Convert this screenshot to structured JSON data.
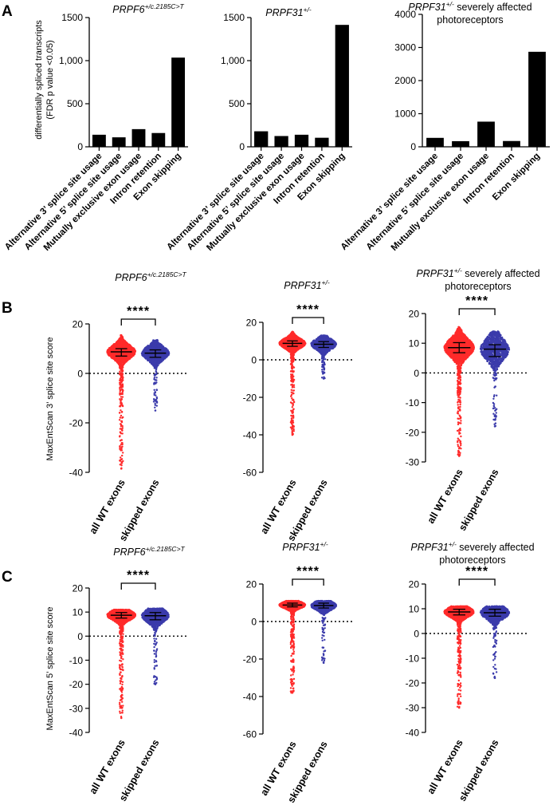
{
  "panels": {
    "A": {
      "letter": "A",
      "ylabel_lines": [
        "differentially spliced transcripts",
        "(FDR p value <0.05)"
      ]
    },
    "B": {
      "letter": "B",
      "ylabel": "MaxEntScan 3’ splice site score",
      "significance": "****"
    },
    "C": {
      "letter": "C",
      "ylabel": "MaxEntScan 5’ splice site score",
      "significance": "****"
    }
  },
  "titles": {
    "prpf6": {
      "gene": "PRPF6",
      "sup": "+/c.2185C>T"
    },
    "prpf31": {
      "gene": "PRPF31",
      "sup": "+/-"
    },
    "prpf31_severe": {
      "gene": "PRPF31",
      "sup": "+/-",
      "rest": " severely affected",
      "line2": "photoreceptors"
    }
  },
  "chart_data": [
    {
      "id": "A1",
      "type": "bar",
      "categories": [
        "Alternative 3’ splice site usage",
        "Alternative 5’ splice site usage",
        "Mutually exclusive exon usage",
        "Intron retention",
        "Exon skipping"
      ],
      "values": [
        140,
        110,
        205,
        160,
        1035
      ],
      "ylim": [
        0,
        1500
      ],
      "yticks": [
        0,
        500,
        1000,
        1500
      ],
      "ytick_labels": [
        "0",
        "500",
        "1,000",
        "1500"
      ],
      "color": "#000000"
    },
    {
      "id": "A2",
      "type": "bar",
      "categories": [
        "Alternative 3’ splice site usage",
        "Alternative 5’ splice site usage",
        "Mutually exclusive exon usage",
        "Intron retention",
        "Exon skipping"
      ],
      "values": [
        180,
        125,
        140,
        105,
        1415
      ],
      "ylim": [
        0,
        1500
      ],
      "yticks": [
        0,
        500,
        1000,
        1500
      ],
      "ytick_labels": [
        "0",
        "500",
        "1,000",
        "1500"
      ],
      "color": "#000000"
    },
    {
      "id": "A3",
      "type": "bar",
      "categories": [
        "Alternative 3’ splice site usage",
        "Alternative 5’ splice site usage",
        "Mutually exclusive exon usage",
        "Intron retention",
        "Exon skipping"
      ],
      "values": [
        270,
        170,
        760,
        175,
        2870
      ],
      "ylim": [
        0,
        4000
      ],
      "yticks": [
        0,
        1000,
        2000,
        3000,
        4000
      ],
      "ytick_labels": [
        "0",
        "1000",
        "2000",
        "3000",
        "4000"
      ],
      "color": "#000000"
    },
    {
      "id": "B1",
      "type": "scatter",
      "categories": [
        "all WT exons",
        "skipped exons"
      ],
      "ylim": [
        -40,
        20
      ],
      "yticks": [
        -40,
        -20,
        0,
        20
      ],
      "series": [
        {
          "name": "all WT exons",
          "color": "#ff2a2a",
          "median": 8.7,
          "q1": 7.0,
          "q3": 10.0,
          "min": -38.5,
          "max": 15.5
        },
        {
          "name": "skipped exons",
          "color": "#3b3bab",
          "median": 8.2,
          "q1": 6.5,
          "q3": 9.5,
          "min": -15,
          "max": 13.5
        }
      ],
      "significance": "****"
    },
    {
      "id": "B2",
      "type": "scatter",
      "categories": [
        "all WT exons",
        "skipped exons"
      ],
      "ylim": [
        -60,
        20
      ],
      "yticks": [
        -60,
        -40,
        -20,
        0,
        20
      ],
      "series": [
        {
          "name": "all WT exons",
          "color": "#ff2a2a",
          "median": 8.8,
          "q1": 7.2,
          "q3": 10.1,
          "min": -40,
          "max": 15
        },
        {
          "name": "skipped exons",
          "color": "#3b3bab",
          "median": 8.3,
          "q1": 6.6,
          "q3": 9.7,
          "min": -10,
          "max": 13
        }
      ],
      "significance": "****"
    },
    {
      "id": "B3",
      "type": "scatter",
      "categories": [
        "all WT exons",
        "skipped exons"
      ],
      "ylim": [
        -30,
        20
      ],
      "yticks": [
        -30,
        -20,
        -10,
        0,
        10,
        20
      ],
      "series": [
        {
          "name": "all WT exons",
          "color": "#ff2a2a",
          "median": 8.5,
          "q1": 6.8,
          "q3": 10.2,
          "min": -28,
          "max": 15.5
        },
        {
          "name": "skipped exons",
          "color": "#3b3bab",
          "median": 8.0,
          "q1": 5.5,
          "q3": 9.5,
          "min": -18,
          "max": 14
        }
      ],
      "significance": "****"
    },
    {
      "id": "C1",
      "type": "scatter",
      "categories": [
        "all WT exons",
        "skipped exons"
      ],
      "ylim": [
        -40,
        20
      ],
      "yticks": [
        -40,
        -30,
        -20,
        -10,
        0,
        10,
        20
      ],
      "series": [
        {
          "name": "all WT exons",
          "color": "#ff2a2a",
          "median": 8.7,
          "q1": 7.5,
          "q3": 9.8,
          "min": -34,
          "max": 11
        },
        {
          "name": "skipped exons",
          "color": "#3b3bab",
          "median": 8.5,
          "q1": 6.8,
          "q3": 9.8,
          "min": -20,
          "max": 11.5
        }
      ],
      "significance": "****"
    },
    {
      "id": "C2",
      "type": "scatter",
      "categories": [
        "all WT exons",
        "skipped exons"
      ],
      "ylim": [
        -60,
        20
      ],
      "yticks": [
        -60,
        -40,
        -20,
        0,
        20
      ],
      "series": [
        {
          "name": "all WT exons",
          "color": "#ff2a2a",
          "median": 8.8,
          "q1": 7.8,
          "q3": 9.8,
          "min": -38,
          "max": 11
        },
        {
          "name": "skipped exons",
          "color": "#3b3bab",
          "median": 8.5,
          "q1": 7.2,
          "q3": 9.8,
          "min": -22,
          "max": 11
        }
      ],
      "significance": "****"
    },
    {
      "id": "C3",
      "type": "scatter",
      "categories": [
        "all WT exons",
        "skipped exons"
      ],
      "ylim": [
        -40,
        20
      ],
      "yticks": [
        -40,
        -30,
        -20,
        -10,
        0,
        10,
        20
      ],
      "series": [
        {
          "name": "all WT exons",
          "color": "#ff2a2a",
          "median": 8.7,
          "q1": 7.5,
          "q3": 9.8,
          "min": -30,
          "max": 11
        },
        {
          "name": "skipped exons",
          "color": "#3b3bab",
          "median": 8.4,
          "q1": 7.0,
          "q3": 9.8,
          "min": -18,
          "max": 11
        }
      ],
      "significance": "****"
    }
  ]
}
